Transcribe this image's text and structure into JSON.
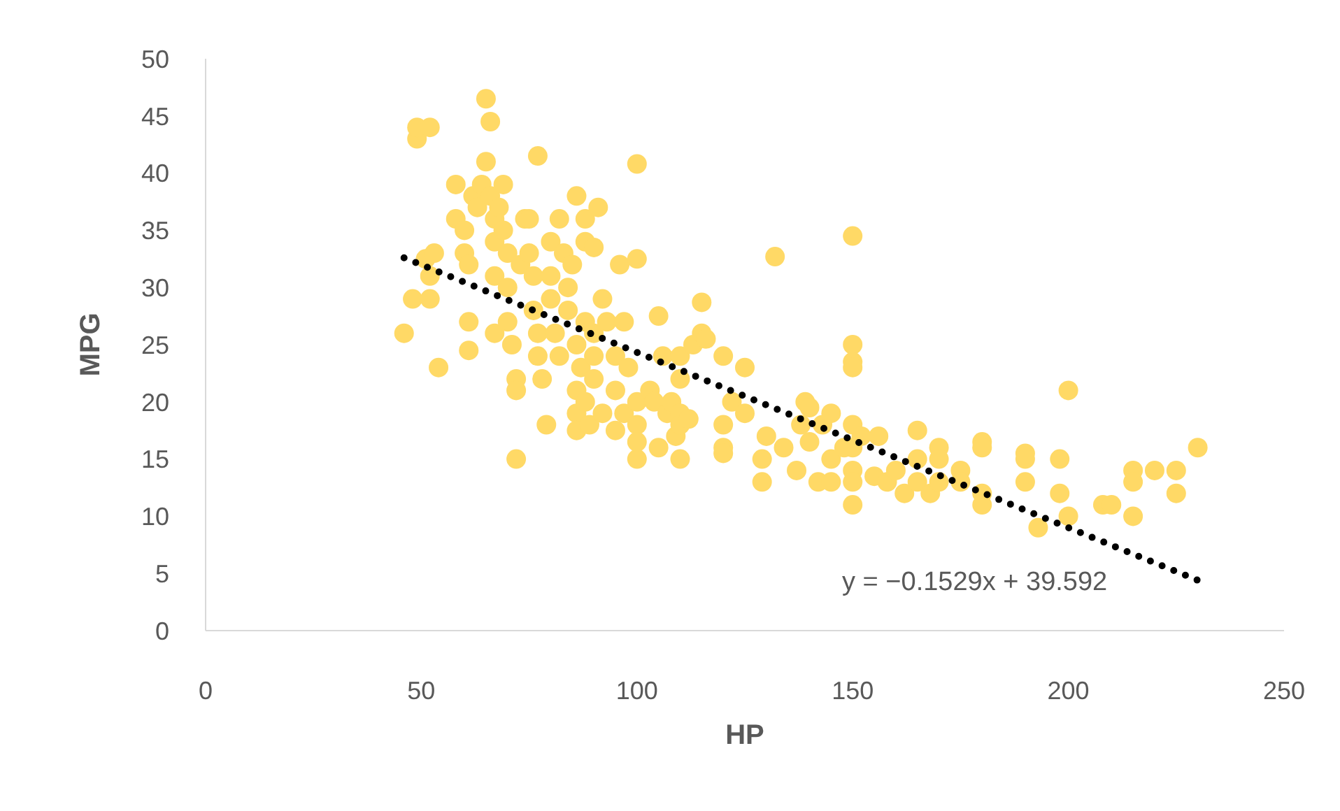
{
  "chart_data": {
    "type": "scatter",
    "xlabel": "HP",
    "ylabel": "MPG",
    "xlim": [
      0,
      250
    ],
    "xticks": [
      0,
      50,
      100,
      150,
      200,
      250
    ],
    "ylim": [
      0,
      50
    ],
    "yticks": [
      0,
      5,
      10,
      15,
      20,
      25,
      30,
      35,
      40,
      45,
      50
    ],
    "marker": "circle",
    "annotations": [
      "y = −0.1529x + 39.592"
    ],
    "series": [
      {
        "type": "scatter",
        "color": "#ffd966",
        "x": [
          46,
          49,
          49,
          52,
          48,
          52,
          52,
          51,
          53,
          54,
          58,
          58,
          60,
          60,
          61,
          61,
          61,
          62,
          63,
          64,
          65,
          65,
          66,
          66,
          67,
          67,
          67,
          67,
          68,
          69,
          69,
          70,
          70,
          70,
          71,
          72,
          72,
          72,
          73,
          74,
          75,
          75,
          76,
          76,
          77,
          77,
          77,
          78,
          79,
          80,
          80,
          80,
          81,
          82,
          82,
          83,
          84,
          84,
          85,
          86,
          86,
          86,
          86,
          86,
          87,
          88,
          88,
          88,
          88,
          89,
          90,
          90,
          90,
          90,
          91,
          92,
          92,
          93,
          95,
          95,
          95,
          96,
          97,
          97,
          98,
          100,
          100,
          100,
          100,
          100,
          100,
          103,
          104,
          105,
          105,
          106,
          107,
          108,
          109,
          110,
          110,
          110,
          110,
          110,
          112,
          113,
          115,
          115,
          116,
          120,
          120,
          120,
          120,
          122,
          125,
          125,
          129,
          129,
          130,
          132,
          134,
          137,
          138,
          139,
          140,
          140,
          142,
          143,
          145,
          145,
          145,
          148,
          150,
          150,
          150,
          150,
          150,
          150,
          150,
          150,
          150,
          152,
          155,
          156,
          158,
          160,
          162,
          165,
          165,
          165,
          168,
          170,
          170,
          170,
          175,
          175,
          180,
          180,
          180,
          180,
          190,
          190,
          190,
          193,
          198,
          198,
          200,
          200,
          208,
          210,
          215,
          215,
          215,
          220,
          225,
          225,
          230
        ],
        "values": [
          26,
          43,
          44,
          44,
          29,
          29,
          31,
          32.5,
          33,
          23,
          39,
          36,
          35,
          33,
          32,
          27,
          24.5,
          38,
          37,
          39,
          46.5,
          41,
          44.5,
          38,
          36,
          34,
          31,
          26,
          37,
          39,
          35,
          33,
          30,
          27,
          25,
          22,
          21,
          15,
          32,
          36,
          36,
          33,
          31,
          28,
          41.5,
          26,
          24,
          22,
          18,
          34,
          31,
          29,
          26,
          24,
          36,
          33,
          30,
          28,
          32,
          38,
          25,
          21,
          19,
          17.5,
          23,
          36,
          34,
          27,
          20,
          18,
          33.5,
          26,
          24,
          22,
          37,
          19,
          29,
          27,
          24,
          21,
          17.5,
          32,
          27,
          19,
          23,
          40.8,
          32.5,
          20,
          18,
          15,
          16.5,
          21,
          20,
          27.5,
          16,
          24,
          19,
          20,
          17,
          24,
          22,
          19,
          15,
          18,
          18.5,
          25,
          28.7,
          26,
          25.5,
          24,
          18,
          16,
          15.5,
          20,
          23,
          19,
          13,
          15,
          17,
          32.7,
          16,
          14,
          18,
          20,
          19.5,
          16.5,
          13,
          18,
          19,
          15,
          13,
          16,
          34.5,
          25,
          23.5,
          23,
          18,
          16,
          14,
          13,
          11,
          17,
          13.5,
          17,
          13,
          14,
          12,
          17.5,
          15,
          13,
          12,
          16,
          15,
          13,
          14,
          13,
          16.5,
          16,
          12,
          11,
          15.5,
          15,
          13,
          9,
          15,
          12,
          21,
          10,
          11,
          11,
          14,
          13,
          10,
          14,
          14,
          12,
          16
        ]
      },
      {
        "type": "line",
        "color": "#000000",
        "line_style": "dotted",
        "marker": "none",
        "x": [
          46,
          230
        ],
        "values": [
          32.6,
          4.4
        ]
      }
    ]
  }
}
